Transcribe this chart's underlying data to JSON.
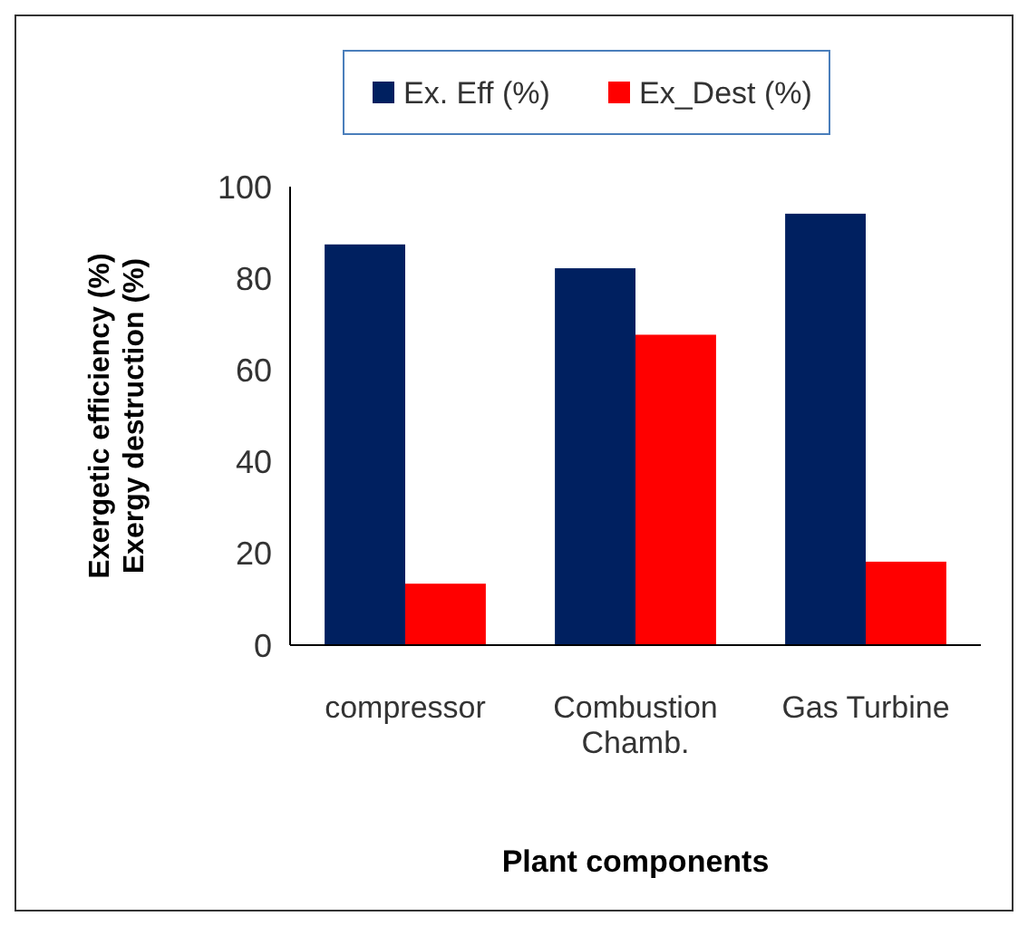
{
  "chart_data": {
    "type": "bar",
    "xlabel": "Plant components",
    "ylabel": "Exergetic efficiency (%)\nExergy destruction (%)",
    "categories": [
      "compressor",
      "Combustion\nChamb.",
      "Gas Turbine"
    ],
    "series": [
      {
        "name": "Ex. Eff (%)",
        "color": "#002060",
        "values": [
          87.4,
          82.2,
          94.1
        ]
      },
      {
        "name": "Ex_Dest (%)",
        "color": "#ff0000",
        "values": [
          13.4,
          67.7,
          18.2
        ]
      }
    ],
    "ylim": [
      0,
      100
    ],
    "yticks": [
      0,
      20,
      40,
      60,
      80,
      100
    ],
    "grid": false,
    "legend": "top"
  }
}
